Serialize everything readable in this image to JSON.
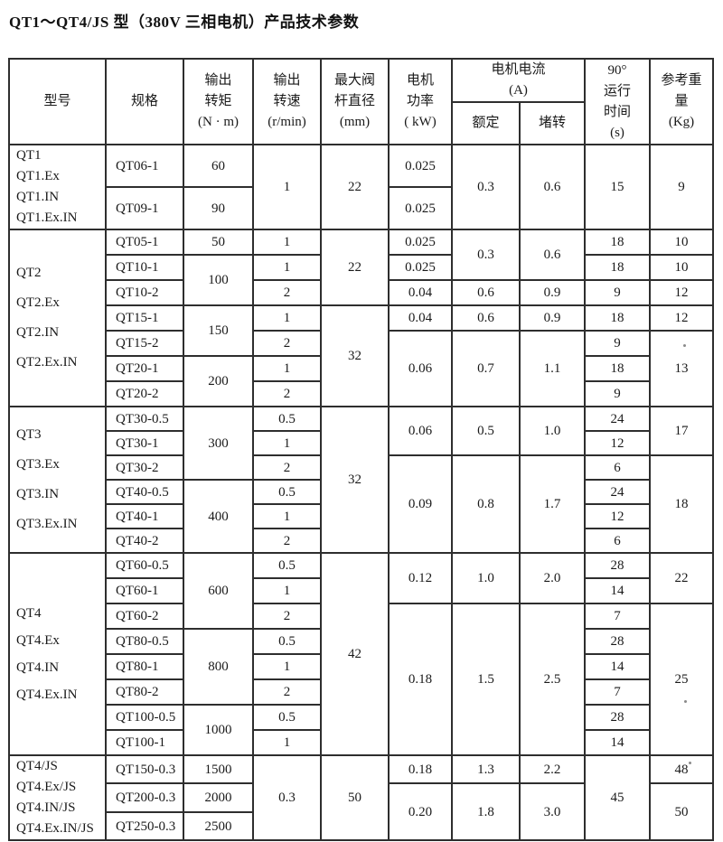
{
  "title": "QT1～QT4/JS 型（380V 三相电机）产品技术参数",
  "colors": {
    "text": "#1a1a1a",
    "border": "#2e2e2e",
    "background": "#ffffff"
  },
  "table": {
    "header_rows": [
      [
        {
          "t": "型号",
          "rs": 2
        },
        {
          "t": "规格",
          "rs": 2
        },
        {
          "t": "输出\n转矩\n(N · m)",
          "rs": 2
        },
        {
          "t": "输出\n转速\n(r/min)",
          "rs": 2
        },
        {
          "t": "最大阀\n杆直径\n(mm)",
          "rs": 2
        },
        {
          "t": "电机\n功率\n( kW)",
          "rs": 2
        },
        {
          "t": "电机电流\n(A)",
          "cs": 2
        },
        {
          "t": "90°\n运行\n时间\n(s)",
          "rs": 2
        },
        {
          "t": "参考重\n量\n(Kg)",
          "rs": 2
        }
      ],
      [
        {
          "t": "额定"
        },
        {
          "t": "堵转"
        }
      ]
    ],
    "sections": [
      {
        "id": "qt1",
        "rows": [
          [
            {
              "t": "QT1\nQT1.Ex\nQT1.IN\nQT1.Ex.IN",
              "rs": 2,
              "cls": "model"
            },
            {
              "t": "QT06-1",
              "cls": "spec"
            },
            {
              "t": "60"
            },
            {
              "t": "1",
              "rs": 2
            },
            {
              "t": "22",
              "rs": 2
            },
            {
              "t": "0.025"
            },
            {
              "t": "0.3",
              "rs": 2
            },
            {
              "t": "0.6",
              "rs": 2
            },
            {
              "t": "15",
              "rs": 2
            },
            {
              "t": "9",
              "rs": 2
            }
          ],
          [
            {
              "t": "QT09-1",
              "cls": "spec"
            },
            {
              "t": "90"
            },
            {
              "t": "0.025"
            }
          ]
        ]
      },
      {
        "id": "qt2",
        "rows": [
          [
            {
              "t": "QT2\nQT2.Ex\nQT2.IN\nQT2.Ex.IN",
              "rs": 7,
              "cls": "model"
            },
            {
              "t": "QT05-1",
              "cls": "spec"
            },
            {
              "t": "50"
            },
            {
              "t": "1"
            },
            {
              "t": "22",
              "rs": 3
            },
            {
              "t": "0.025"
            },
            {
              "t": "0.3",
              "rs": 2
            },
            {
              "t": "0.6",
              "rs": 2
            },
            {
              "t": "18"
            },
            {
              "t": "10"
            }
          ],
          [
            {
              "t": "QT10-1",
              "cls": "spec"
            },
            {
              "t": "100",
              "rs": 2
            },
            {
              "t": "1"
            },
            {
              "t": "0.025"
            },
            {
              "t": "18"
            },
            {
              "t": "10"
            }
          ],
          [
            {
              "t": "QT10-2",
              "cls": "spec"
            },
            {
              "t": "2"
            },
            {
              "t": "0.04"
            },
            {
              "t": "0.6"
            },
            {
              "t": "0.9"
            },
            {
              "t": "9"
            },
            {
              "t": "12"
            }
          ],
          [
            {
              "t": "QT15-1",
              "cls": "spec"
            },
            {
              "t": "150",
              "rs": 2
            },
            {
              "t": "1"
            },
            {
              "t": "32",
              "rs": 4
            },
            {
              "t": "0.04"
            },
            {
              "t": "0.6"
            },
            {
              "t": "0.9"
            },
            {
              "t": "18"
            },
            {
              "t": "12"
            }
          ],
          [
            {
              "t": "QT15-2",
              "cls": "spec"
            },
            {
              "t": "2"
            },
            {
              "t": "0.06",
              "rs": 3
            },
            {
              "t": "0.7",
              "rs": 3
            },
            {
              "t": "1.1",
              "rs": 3
            },
            {
              "t": "9"
            },
            {
              "t": "13",
              "rs": 3
            }
          ],
          [
            {
              "t": "QT20-1",
              "cls": "spec"
            },
            {
              "t": "200",
              "rs": 2
            },
            {
              "t": "1"
            },
            {
              "t": "18"
            }
          ],
          [
            {
              "t": "QT20-2",
              "cls": "spec"
            },
            {
              "t": "2"
            },
            {
              "t": "9"
            }
          ]
        ]
      },
      {
        "id": "qt3",
        "rows": [
          [
            {
              "t": "QT3\nQT3.Ex\nQT3.IN\nQT3.Ex.IN",
              "rs": 6,
              "cls": "model"
            },
            {
              "t": "QT30-0.5",
              "cls": "spec"
            },
            {
              "t": "300",
              "rs": 3
            },
            {
              "t": "0.5"
            },
            {
              "t": "32",
              "rs": 6
            },
            {
              "t": "0.06",
              "rs": 2
            },
            {
              "t": "0.5",
              "rs": 2
            },
            {
              "t": "1.0",
              "rs": 2
            },
            {
              "t": "24"
            },
            {
              "t": "17",
              "rs": 2
            }
          ],
          [
            {
              "t": "QT30-1",
              "cls": "spec"
            },
            {
              "t": "1"
            },
            {
              "t": "12"
            }
          ],
          [
            {
              "t": "QT30-2",
              "cls": "spec"
            },
            {
              "t": "2"
            },
            {
              "t": "0.09",
              "rs": 4
            },
            {
              "t": "0.8",
              "rs": 4
            },
            {
              "t": "1.7",
              "rs": 4
            },
            {
              "t": "6"
            },
            {
              "t": "18",
              "rs": 4
            }
          ],
          [
            {
              "t": "QT40-0.5",
              "cls": "spec"
            },
            {
              "t": "400",
              "rs": 3
            },
            {
              "t": "0.5"
            },
            {
              "t": "24"
            }
          ],
          [
            {
              "t": "QT40-1",
              "cls": "spec"
            },
            {
              "t": "1"
            },
            {
              "t": "12"
            }
          ],
          [
            {
              "t": "QT40-2",
              "cls": "spec"
            },
            {
              "t": "2"
            },
            {
              "t": "6"
            }
          ]
        ]
      },
      {
        "id": "qt4",
        "rows": [
          [
            {
              "t": "QT4\nQT4.Ex\nQT4.IN\nQT4.Ex.IN",
              "rs": 8,
              "cls": "model"
            },
            {
              "t": "QT60-0.5",
              "cls": "spec"
            },
            {
              "t": "600",
              "rs": 3
            },
            {
              "t": "0.5"
            },
            {
              "t": "42",
              "rs": 8
            },
            {
              "t": "0.12",
              "rs": 2
            },
            {
              "t": "1.0",
              "rs": 2
            },
            {
              "t": "2.0",
              "rs": 2
            },
            {
              "t": "28"
            },
            {
              "t": "22",
              "rs": 2
            }
          ],
          [
            {
              "t": "QT60-1",
              "cls": "spec"
            },
            {
              "t": "1"
            },
            {
              "t": "14"
            }
          ],
          [
            {
              "t": "QT60-2",
              "cls": "spec"
            },
            {
              "t": "2"
            },
            {
              "t": "0.18",
              "rs": 6
            },
            {
              "t": "1.5",
              "rs": 6
            },
            {
              "t": "2.5",
              "rs": 6
            },
            {
              "t": "7"
            },
            {
              "t": "25",
              "rs": 6
            }
          ],
          [
            {
              "t": "QT80-0.5",
              "cls": "spec"
            },
            {
              "t": "800",
              "rs": 3
            },
            {
              "t": "0.5"
            },
            {
              "t": "28"
            }
          ],
          [
            {
              "t": "QT80-1",
              "cls": "spec"
            },
            {
              "t": "1"
            },
            {
              "t": "14"
            }
          ],
          [
            {
              "t": "QT80-2",
              "cls": "spec"
            },
            {
              "t": "2"
            },
            {
              "t": "7"
            }
          ],
          [
            {
              "t": "QT100-0.5",
              "cls": "spec"
            },
            {
              "t": "1000",
              "rs": 2
            },
            {
              "t": "0.5"
            },
            {
              "t": "28"
            }
          ],
          [
            {
              "t": "QT100-1",
              "cls": "spec"
            },
            {
              "t": "1"
            },
            {
              "t": "14"
            }
          ]
        ]
      },
      {
        "id": "qt4js",
        "rows": [
          [
            {
              "t": "QT4/JS\nQT4.Ex/JS\nQT4.IN/JS\nQT4.Ex.IN/JS",
              "rs": 3,
              "cls": "model"
            },
            {
              "t": "QT150-0.3",
              "cls": "spec"
            },
            {
              "t": "1500"
            },
            {
              "t": "0.3",
              "rs": 3
            },
            {
              "t": "50",
              "rs": 3
            },
            {
              "t": "0.18"
            },
            {
              "t": "1.3"
            },
            {
              "t": "2.2"
            },
            {
              "t": "45",
              "rs": 3
            },
            {
              "t": "48"
            }
          ],
          [
            {
              "t": "QT200-0.3",
              "cls": "spec"
            },
            {
              "t": "2000"
            },
            {
              "t": "0.20",
              "rs": 2
            },
            {
              "t": "1.8",
              "rs": 2
            },
            {
              "t": "3.0",
              "rs": 2
            },
            {
              "t": "50",
              "rs": 2
            }
          ],
          [
            {
              "t": "QT250-0.3",
              "cls": "spec"
            },
            {
              "t": "2500"
            }
          ]
        ]
      }
    ]
  }
}
